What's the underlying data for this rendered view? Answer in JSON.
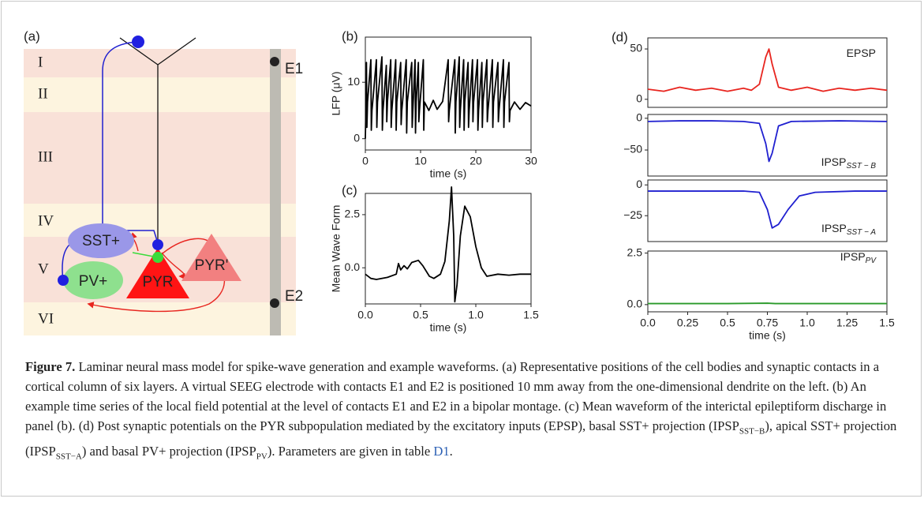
{
  "panel_a": {
    "label": "(a)",
    "layers": [
      "I",
      "II",
      "III",
      "IV",
      "V",
      "VI"
    ],
    "populations": [
      "SST+",
      "PV+",
      "PYR",
      "PYR'"
    ],
    "electrodes": [
      "E1",
      "E2"
    ]
  },
  "chart_data": [
    {
      "type": "line",
      "panel_label": "(b)",
      "xlabel": "time (s)",
      "ylabel": "LFP (μV)",
      "xlim": [
        0,
        30
      ],
      "ylim": [
        -2,
        18
      ],
      "xticks": [
        0,
        10,
        20,
        30
      ],
      "yticks": [
        0,
        10
      ],
      "x": [
        0,
        0.1,
        0.2,
        0.28,
        0.4,
        1.0,
        1.08,
        1.2,
        2.0,
        2.08,
        2.2,
        3.0,
        3.08,
        3.2,
        3.8,
        3.88,
        4.0,
        4.6,
        4.68,
        4.8,
        5.5,
        5.58,
        5.7,
        6.4,
        6.48,
        6.6,
        7.4,
        7.48,
        7.6,
        8.4,
        8.48,
        8.6,
        9.0,
        9.08,
        9.2,
        9.6,
        9.68,
        9.8,
        10.5,
        10.58,
        10.7,
        11.5,
        12.3,
        13.0,
        14.0,
        15.0,
        15.08,
        15.2,
        16.2,
        16.28,
        16.4,
        17.0,
        17.08,
        17.2,
        17.8,
        17.88,
        18.0,
        18.6,
        18.68,
        18.8,
        19.4,
        19.48,
        19.6,
        20.3,
        20.38,
        20.5,
        21.1,
        21.18,
        21.3,
        22.0,
        22.08,
        22.2,
        23.0,
        23.08,
        23.2,
        24.0,
        24.08,
        24.2,
        25.0,
        25.08,
        25.2,
        26.0,
        26.08,
        26.2,
        27,
        28,
        29,
        30
      ],
      "series": [
        {
          "color": "#000000",
          "values": [
            0,
            5.5,
            13.5,
            2,
            6.5,
            14,
            1.5,
            5,
            14,
            2,
            6.5,
            14.5,
            1.5,
            5,
            13,
            3,
            6.5,
            14,
            2,
            5,
            14,
            1.5,
            6.5,
            13.5,
            2.5,
            5,
            14,
            1,
            6.5,
            13.5,
            2,
            5,
            14,
            1,
            6.5,
            13.5,
            3,
            5,
            14,
            1.5,
            6.5,
            5,
            6.8,
            5.2,
            6.6,
            14,
            3,
            5,
            14,
            1,
            6.5,
            14.5,
            2,
            5,
            14,
            1.5,
            6.5,
            13.5,
            2,
            5,
            14,
            3,
            6.5,
            14,
            1.5,
            5,
            13.5,
            2,
            6.5,
            14,
            3,
            5,
            14,
            2,
            6.5,
            13.5,
            3,
            5,
            14,
            2,
            6.5,
            13.5,
            3,
            5,
            6.5,
            5.2,
            6.4,
            5.8
          ]
        }
      ]
    },
    {
      "type": "line",
      "panel_label": "(c)",
      "xlabel": "time (s)",
      "ylabel": "Mean Wave Form",
      "xlim": [
        0,
        1.5
      ],
      "ylim": [
        -1.7,
        3.5
      ],
      "xticks": [
        {
          "value": 0,
          "label": "0.0"
        },
        0.5,
        {
          "value": 1,
          "label": "1.0"
        },
        1.5
      ],
      "yticks": [
        {
          "value": 0,
          "label": "0.0"
        },
        2.5
      ],
      "x": [
        0,
        0.05,
        0.1,
        0.2,
        0.28,
        0.3,
        0.32,
        0.35,
        0.38,
        0.42,
        0.48,
        0.52,
        0.58,
        0.62,
        0.68,
        0.72,
        0.76,
        0.78,
        0.8,
        0.81,
        0.83,
        0.86,
        0.9,
        0.95,
        1.0,
        1.05,
        1.1,
        1.2,
        1.3,
        1.4,
        1.5
      ],
      "series": [
        {
          "color": "#000000",
          "values": [
            -0.3,
            -0.5,
            -0.55,
            -0.45,
            -0.3,
            0.2,
            -0.1,
            0.1,
            -0.05,
            0.25,
            0.35,
            0.1,
            -0.4,
            -0.5,
            -0.3,
            0.3,
            2.2,
            3.8,
            1.5,
            -1.6,
            -0.8,
            1.5,
            2.9,
            2.4,
            1.0,
            0.0,
            -0.4,
            -0.3,
            -0.35,
            -0.3,
            -0.3
          ]
        }
      ]
    },
    {
      "type": "line",
      "panel_label": "(d)",
      "annotation": "EPSP",
      "xlim": [
        0,
        1.5
      ],
      "ylim": [
        -8,
        61
      ],
      "yticks": [
        0,
        50
      ],
      "x": [
        0,
        0.1,
        0.2,
        0.3,
        0.4,
        0.5,
        0.6,
        0.65,
        0.7,
        0.74,
        0.76,
        0.78,
        0.82,
        0.9,
        1.0,
        1.1,
        1.2,
        1.3,
        1.4,
        1.5
      ],
      "series": [
        {
          "color": "#e8251f",
          "values": [
            10,
            8,
            12,
            9,
            11,
            8,
            11,
            9,
            15,
            42,
            50,
            35,
            12,
            9,
            12,
            8,
            11,
            9,
            11,
            9
          ]
        }
      ]
    },
    {
      "type": "line",
      "annotation": "IPSP",
      "annotation_sub": "SST − B",
      "xlim": [
        0,
        1.5
      ],
      "ylim": [
        -91,
        6
      ],
      "yticks": [
        {
          "value": -50,
          "label": "−50"
        },
        0
      ],
      "x": [
        0,
        0.2,
        0.4,
        0.6,
        0.7,
        0.74,
        0.76,
        0.78,
        0.82,
        0.9,
        1.2,
        1.5
      ],
      "series": [
        {
          "color": "#2020d0",
          "values": [
            -5,
            -4,
            -4,
            -5,
            -8,
            -40,
            -68,
            -55,
            -12,
            -5,
            -4,
            -5
          ]
        }
      ]
    },
    {
      "type": "line",
      "annotation": "IPSP",
      "annotation_sub": "SST − A",
      "xlim": [
        0,
        1.5
      ],
      "ylim": [
        -46,
        4
      ],
      "yticks": [
        {
          "value": -25,
          "label": "−25"
        },
        0
      ],
      "x": [
        0,
        0.3,
        0.6,
        0.7,
        0.75,
        0.78,
        0.82,
        0.88,
        0.95,
        1.05,
        1.3,
        1.5
      ],
      "series": [
        {
          "color": "#2020d0",
          "values": [
            -5,
            -5,
            -5,
            -6,
            -20,
            -35,
            -32,
            -20,
            -9,
            -6,
            -5,
            -5
          ]
        }
      ]
    },
    {
      "type": "line",
      "annotation": "IPSP",
      "annotation_sub": "PV",
      "xlabel": "time (s)",
      "xlim": [
        0,
        1.5
      ],
      "ylim": [
        -0.35,
        2.6
      ],
      "xticks": [
        {
          "value": 0,
          "label": "0.0"
        },
        0.25,
        0.5,
        0.75,
        {
          "value": 1,
          "label": "1.0"
        },
        1.25,
        1.5
      ],
      "yticks": [
        {
          "value": 0,
          "label": "0.0"
        },
        2.5
      ],
      "x": [
        0,
        0.5,
        0.75,
        0.8,
        1.5
      ],
      "series": [
        {
          "color": "#2a9a2a",
          "values": [
            0.05,
            0.05,
            0.07,
            0.05,
            0.05
          ]
        }
      ]
    }
  ],
  "caption": {
    "label": "Figure 7.",
    "text_1": " Laminar neural mass model for spike-wave generation and example waveforms. (a) Representative positions of the cell bodies and synaptic contacts in a cortical column of six layers. A virtual SEEG electrode with contacts E1 and E2 is positioned 10 mm away from the one-dimensional dendrite on the left. (b) An example time series of the local field potential at the level of contacts E1 and E2 in a bipolar montage. (c) Mean waveform of the interictal epileptiform discharge in panel (b). (d) Post synaptic potentials on the PYR subpopulation mediated by the excitatory inputs (EPSP), basal SST+ projection (IPSP",
    "sub_1": "SST−B",
    "text_2": "), apical SST+ projection (IPSP",
    "sub_2": "SST−A",
    "text_3": ") and basal PV+ projection (IPSP",
    "sub_3": "PV",
    "text_4": "). Parameters are given in table ",
    "link": "D1",
    "end": "."
  }
}
